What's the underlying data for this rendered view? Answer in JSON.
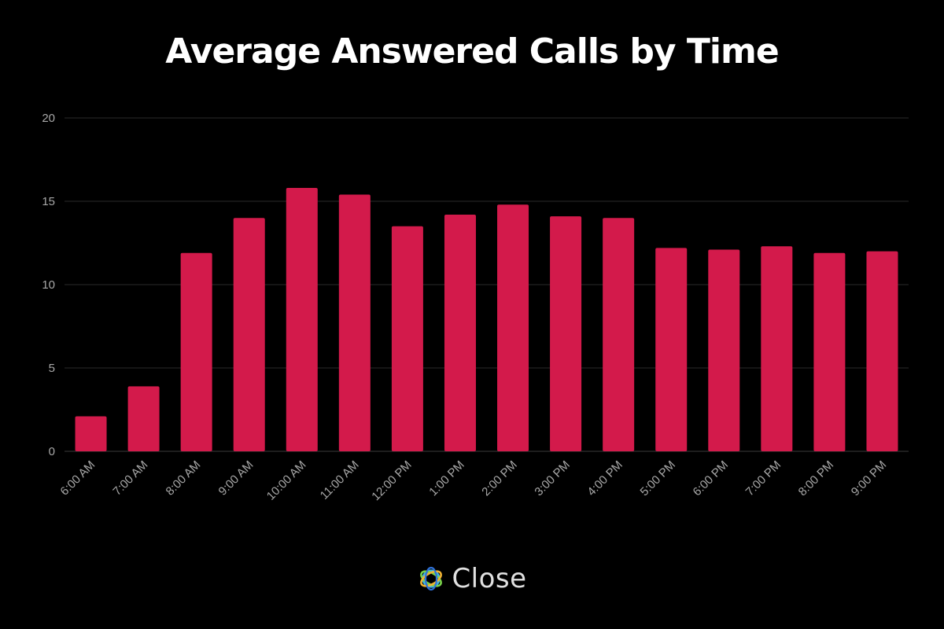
{
  "chart_data": {
    "type": "bar",
    "title": "Average Answered Calls by Time",
    "xlabel": "",
    "ylabel": "",
    "categories": [
      "6:00 AM",
      "7:00 AM",
      "8:00 AM",
      "9:00 AM",
      "10:00 AM",
      "11:00 AM",
      "12:00 PM",
      "1:00 PM",
      "2:00 PM",
      "3:00 PM",
      "4:00 PM",
      "5:00 PM",
      "6:00 PM",
      "7:00 PM",
      "8:00 PM",
      "9:00 PM"
    ],
    "values": [
      2.1,
      3.9,
      11.9,
      14.0,
      15.8,
      15.4,
      13.5,
      14.2,
      14.8,
      14.1,
      14.0,
      12.2,
      12.1,
      12.3,
      11.9,
      12.0
    ],
    "yticks": [
      0,
      5,
      10,
      15,
      20
    ],
    "ylim": [
      0,
      20
    ],
    "grid": true,
    "bar_color": "#d31a4b",
    "background": "#000000"
  },
  "brand": {
    "name": "Close",
    "icon": "close-logo-icon"
  }
}
